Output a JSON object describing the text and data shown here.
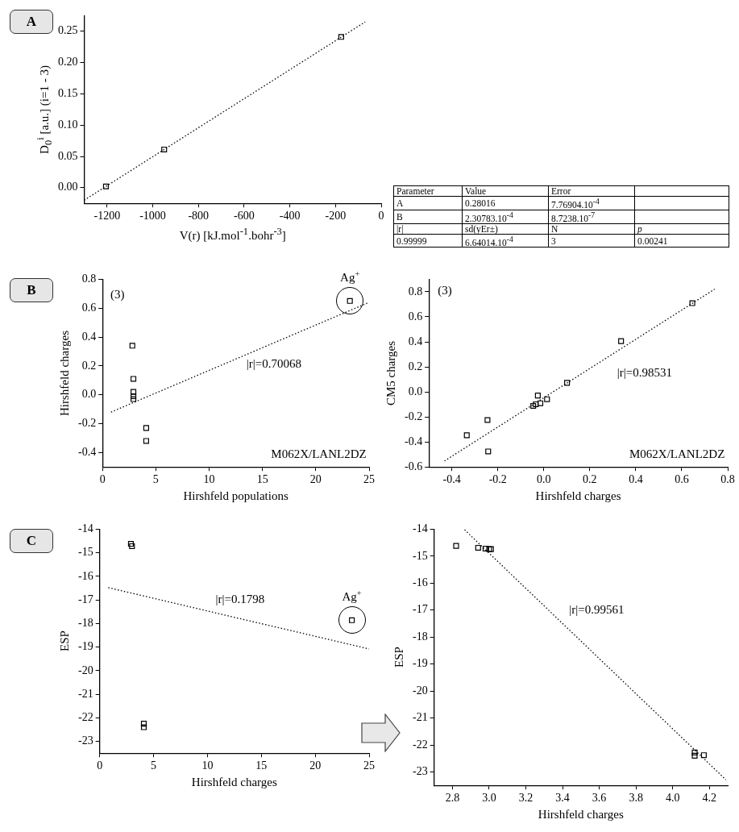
{
  "chart_data": [
    {
      "type": "scatter",
      "xlabel": "V(r) [kJ.mol$^{-1}$.bohr$^{-3}$]",
      "ylabel": "D$_{0}$$^{i}$ [a.u.] (i=1 - 3)",
      "marker": "square",
      "xlim": [
        -1300,
        0
      ],
      "xticks": [
        -1200,
        -1000,
        -800,
        -600,
        -400,
        -200,
        0
      ],
      "ylim": [
        -0.025,
        0.275
      ],
      "yticks": [
        {
          "value": 0,
          "label": "0.00"
        },
        {
          "value": 0.05,
          "label": "0.05"
        },
        {
          "value": 0.1,
          "label": "0.10"
        },
        {
          "value": 0.15,
          "label": "0.15"
        },
        {
          "value": 0.2,
          "label": "0.20"
        },
        {
          "value": 0.25,
          "label": "0.25"
        }
      ],
      "series": [
        {
          "color": "#000000",
          "x": [
            -1205,
            -950,
            -175
          ],
          "values": [
            0.002,
            0.061,
            0.241
          ]
        },
        {
          "type": "line",
          "color": "#000000",
          "marker": "none",
          "line_style": "dotted",
          "x": [
            -1300,
            -70
          ],
          "values": [
            -0.02,
            0.265
          ]
        }
      ],
      "annotations": [
        "A"
      ]
    },
    {
      "type": "other",
      "annotations": [
        "Parameter",
        "Value",
        "Error",
        "A",
        "0.28016",
        "7.76904.10$^{-4}$",
        "B",
        "2.30783.10$^{-4}$",
        "8.7238.10$^{-7}$",
        "|r|",
        "sd(yEr±)",
        "N",
        "p",
        "0.99999",
        "6.64014.10$^{-4}$",
        "3",
        "0.00241"
      ]
    },
    {
      "type": "scatter",
      "xlabel": "Hirshfeld populations",
      "ylabel": "Hirshfeld charges",
      "marker": "square",
      "xlim": [
        0,
        25
      ],
      "xticks": [
        0,
        5,
        10,
        15,
        20,
        25
      ],
      "ylim": [
        -0.5,
        0.8
      ],
      "yticks": [
        -0.4,
        -0.2,
        {
          "value": 0,
          "label": "0.0"
        },
        0.2,
        0.4,
        0.6,
        0.8
      ],
      "series": [
        {
          "color": "#000000",
          "x": [
            2.8,
            2.9,
            2.9,
            2.9,
            2.9,
            4.1,
            4.1,
            23.2
          ],
          "values": [
            0.34,
            0.11,
            0.02,
            -0.01,
            -0.03,
            -0.23,
            -0.32,
            0.65
          ]
        },
        {
          "type": "line",
          "color": "#000000",
          "marker": "none",
          "line_style": "dotted",
          "x": [
            0.8,
            25
          ],
          "values": [
            -0.12,
            0.64
          ]
        }
      ],
      "annotations": [
        "B",
        "(3)",
        "M062X/LANL2DZ",
        "|r|=0.70068",
        {
          "text": "Ag$^{+}$",
          "x": 23.2,
          "y": 0.65
        }
      ]
    },
    {
      "type": "scatter",
      "xlabel": "Hirshfeld charges",
      "ylabel": "CM5 charges",
      "marker": "square",
      "xlim": [
        -0.5,
        0.8
      ],
      "xticks": [
        -0.4,
        -0.2,
        {
          "value": 0,
          "label": "0.0"
        },
        0.2,
        0.4,
        0.6,
        0.8
      ],
      "ylim": [
        -0.6,
        0.9
      ],
      "yticks": [
        -0.6,
        -0.4,
        -0.2,
        {
          "value": 0,
          "label": "0.0"
        },
        0.2,
        0.4,
        0.6,
        0.8
      ],
      "series": [
        {
          "color": "#000000",
          "x": [
            -0.335,
            -0.245,
            -0.242,
            -0.046,
            -0.035,
            -0.026,
            -0.015,
            0.014,
            0.101,
            0.336,
            0.646
          ],
          "values": [
            -0.347,
            -0.225,
            -0.476,
            -0.112,
            -0.099,
            -0.029,
            -0.091,
            -0.059,
            0.072,
            0.406,
            0.709
          ]
        },
        {
          "type": "line",
          "color": "#000000",
          "marker": "none",
          "line_style": "dotted",
          "x": [
            -0.432,
            0.743
          ],
          "values": [
            -0.552,
            0.821
          ]
        }
      ],
      "annotations": [
        "(3)",
        "M062X/LANL2DZ",
        "|r|=0.98531"
      ]
    },
    {
      "type": "scatter",
      "xlabel": "Hirshfeld charges",
      "ylabel": "ESP",
      "marker": "square",
      "xlim": [
        0,
        25
      ],
      "xticks": [
        0,
        5,
        10,
        15,
        20,
        25
      ],
      "ylim": [
        -23.5,
        -14
      ],
      "yticks": [
        -23,
        -22,
        -21,
        -20,
        -19,
        -18,
        -17,
        -16,
        -15,
        -14
      ],
      "series": [
        {
          "color": "#000000",
          "x": [
            2.9,
            3.0,
            4.1,
            4.1,
            23.4
          ],
          "values": [
            -14.62,
            -14.72,
            -22.25,
            -22.4,
            -17.86
          ]
        },
        {
          "type": "line",
          "color": "#000000",
          "marker": "none",
          "line_style": "dotted",
          "x": [
            0.8,
            25
          ],
          "values": [
            -16.48,
            -19.08
          ]
        }
      ],
      "annotations": [
        "C",
        "|r|=0.1798",
        {
          "text": "Ag$^{+}$",
          "x": 23.4,
          "y": -17.86
        }
      ]
    },
    {
      "type": "scatter",
      "xlabel": "Hirshfeld charges",
      "ylabel": "ESP",
      "marker": "square",
      "xlim": [
        2.7,
        4.3
      ],
      "xticks": [
        2.8,
        {
          "value": 3,
          "label": "3.0"
        },
        3.2,
        3.4,
        3.6,
        3.8,
        {
          "value": 4,
          "label": "4.0"
        },
        4.2
      ],
      "ylim": [
        -23.5,
        -14
      ],
      "yticks": [
        -23,
        -22,
        -21,
        -20,
        -19,
        -18,
        -17,
        -16,
        -15,
        -14
      ],
      "series": [
        {
          "color": "#000000",
          "x": [
            2.82,
            2.94,
            2.98,
            3.0,
            3.01,
            4.12,
            4.12,
            4.17
          ],
          "values": [
            -14.62,
            -14.69,
            -14.72,
            -14.74,
            -14.74,
            -22.28,
            -22.4,
            -22.38
          ]
        },
        {
          "type": "line",
          "color": "#000000",
          "marker": "none",
          "line_style": "dotted",
          "x": [
            2.866,
            4.29
          ],
          "values": [
            -14.02,
            -23.29
          ]
        }
      ],
      "annotations": [
        "|r|=0.99561"
      ]
    }
  ]
}
